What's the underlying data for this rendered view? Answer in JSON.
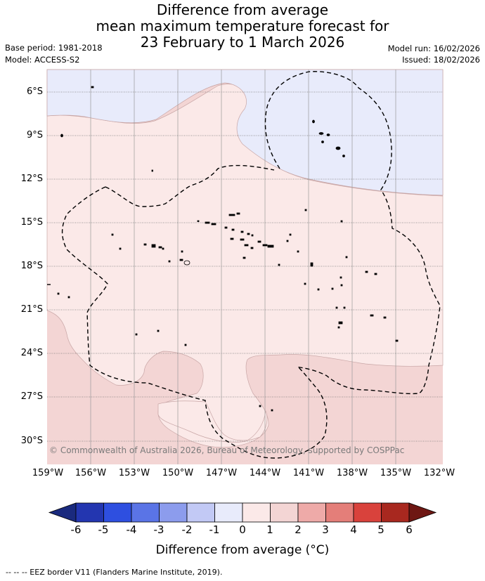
{
  "header": {
    "title_lines": [
      "Difference from average",
      "mean maximum temperature forecast for",
      "23 February to 1 March 2026"
    ],
    "base_period": "Base period: 1981-2018",
    "model": "Model: ACCESS-S2",
    "model_run": "Model run: 16/02/2026",
    "issued": "Issued: 18/02/2026"
  },
  "map": {
    "latitude_labels": [
      "6°S",
      "9°S",
      "12°S",
      "15°S",
      "18°S",
      "21°S",
      "24°S",
      "27°S",
      "30°S"
    ],
    "longitude_labels": [
      "159°W",
      "156°W",
      "153°W",
      "150°W",
      "147°W",
      "144°W",
      "141°W",
      "138°W",
      "135°W",
      "132°W"
    ],
    "copyright": "© Commonwealth of Australia 2026, Bureau of Meteorology, supported by COSPPac",
    "colors": {
      "minus_1_to_0": "#e8ebfb",
      "zero_to_1": "#fbe9e8",
      "one_to_2": "#f3d5d4",
      "boundary": "#c8a6a6",
      "grid": "#9a9a9a",
      "eez": "#000000"
    }
  },
  "colorbar": {
    "ticks": [
      "-6",
      "-5",
      "-4",
      "-3",
      "-2",
      "-1",
      "0",
      "1",
      "2",
      "3",
      "4",
      "5",
      "6"
    ],
    "colors": [
      "#1a2a7e",
      "#2336b0",
      "#2e4fe0",
      "#5a74e6",
      "#8c9ced",
      "#c2c9f5",
      "#e8ebfb",
      "#fbe9e8",
      "#f3d5d4",
      "#eeaaa8",
      "#e47e79",
      "#d9423c",
      "#a8281f",
      "#6e1713"
    ],
    "title": "Difference from average (°C)"
  },
  "footer": {
    "eez_legend": "--  --  -- EEZ border V11 (Flanders Marine Institute, 2019)."
  }
}
